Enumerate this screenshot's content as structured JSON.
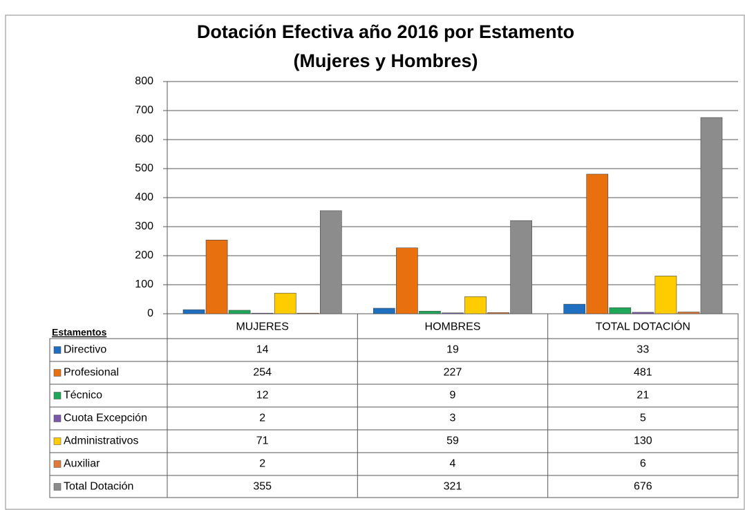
{
  "chart_data": {
    "type": "bar",
    "title": [
      "Dotación Efectiva año 2016 por Estamento",
      "(Mujeres y Hombres)"
    ],
    "table_header": "Estamentos",
    "categories": [
      "MUJERES",
      "HOMBRES",
      "TOTAL DOTACIÓN"
    ],
    "series": [
      {
        "name": "Directivo",
        "color": "#1f6fc0",
        "values": [
          14,
          19,
          33
        ]
      },
      {
        "name": "Profesional",
        "color": "#e8700f",
        "values": [
          254,
          227,
          481
        ]
      },
      {
        "name": "Técnico",
        "color": "#1fa85a",
        "values": [
          12,
          9,
          21
        ]
      },
      {
        "name": "Cuota Excepción",
        "color": "#7a5aa8",
        "values": [
          2,
          3,
          5
        ]
      },
      {
        "name": "Administrativos",
        "color": "#ffcc00",
        "values": [
          71,
          59,
          130
        ]
      },
      {
        "name": "Auxiliar",
        "color": "#e07a3a",
        "values": [
          2,
          4,
          6
        ]
      },
      {
        "name": "Total Dotación",
        "color": "#8c8c8c",
        "values": [
          355,
          321,
          676
        ]
      }
    ],
    "ylim": [
      0,
      800
    ],
    "yticks": [
      0,
      100,
      200,
      300,
      400,
      500,
      600,
      700,
      800
    ],
    "grid": true
  }
}
